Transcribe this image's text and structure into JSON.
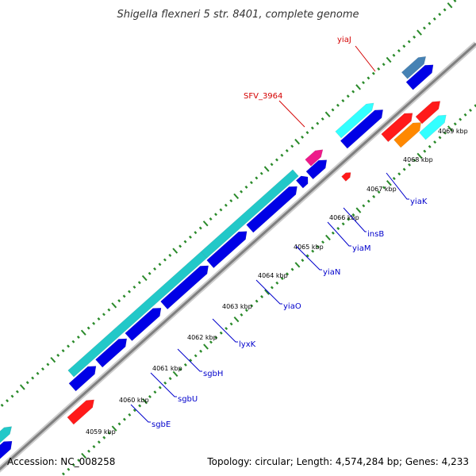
{
  "title": "Shigella flexneri 5 str. 8401, complete genome",
  "accession": "Accession: NC_008258",
  "topology": "Topology: circular; Length: 4,574,284 bp; Genes: 4,233",
  "colors": {
    "backbone": "#888888",
    "tick": "#2a8a2a",
    "gene_forward": "#0000e6",
    "gene_cds": "#22c8c8",
    "gene_cds_light": "#33ffff",
    "rna": "#ff1a1a",
    "transposon": "#ee1a8a",
    "misc": "#ff8800",
    "steel": "#4682b4",
    "label_forward": "#d40000",
    "label_reverse": "#0000cc"
  },
  "kbp_labels": [
    "4059 kbp",
    "4060 kbp",
    "4061 kbp",
    "4062 kbp",
    "4063 kbp",
    "4064 kbp",
    "4065 kbp",
    "4066 kbp",
    "4067 kbp",
    "4068 kbp",
    "4069 kbp"
  ],
  "gene_labels_top": [
    {
      "name": "yiaJ",
      "color": "#d40000"
    },
    {
      "name": "SFV_3964",
      "color": "#d40000"
    }
  ],
  "gene_labels_bottom": [
    {
      "name": "sgbE"
    },
    {
      "name": "sgbU"
    },
    {
      "name": "sgbH"
    },
    {
      "name": "lyxK"
    },
    {
      "name": "yiaO"
    },
    {
      "name": "yiaN"
    },
    {
      "name": "yiaM"
    },
    {
      "name": "insB"
    },
    {
      "name": "yiaK"
    }
  ]
}
